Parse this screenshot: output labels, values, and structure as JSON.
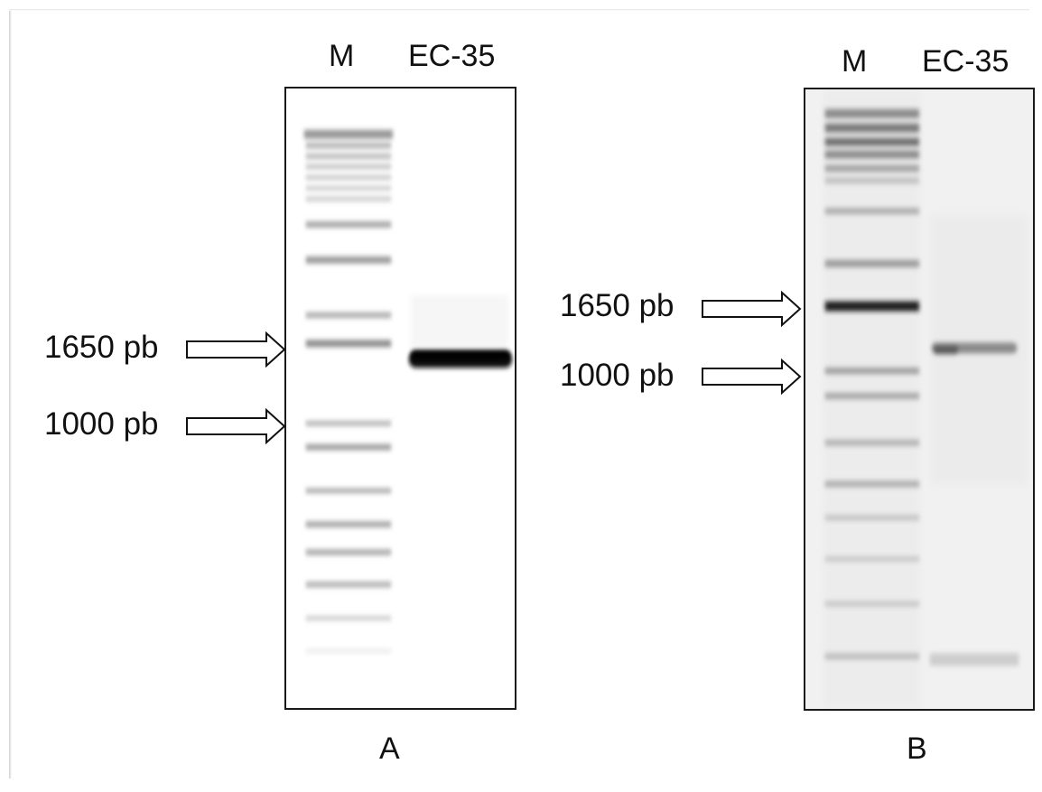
{
  "gel_a": {
    "lane_labels": [
      "M",
      "EC-35"
    ],
    "panel_letter": "A",
    "markers": [
      {
        "label": "1650 pb"
      },
      {
        "label": "1000 pb"
      }
    ]
  },
  "gel_b": {
    "lane_labels": [
      "M",
      "EC-35"
    ],
    "panel_letter": "B",
    "markers": [
      {
        "label": "1650 pb"
      },
      {
        "label": "1000 pb"
      }
    ]
  }
}
